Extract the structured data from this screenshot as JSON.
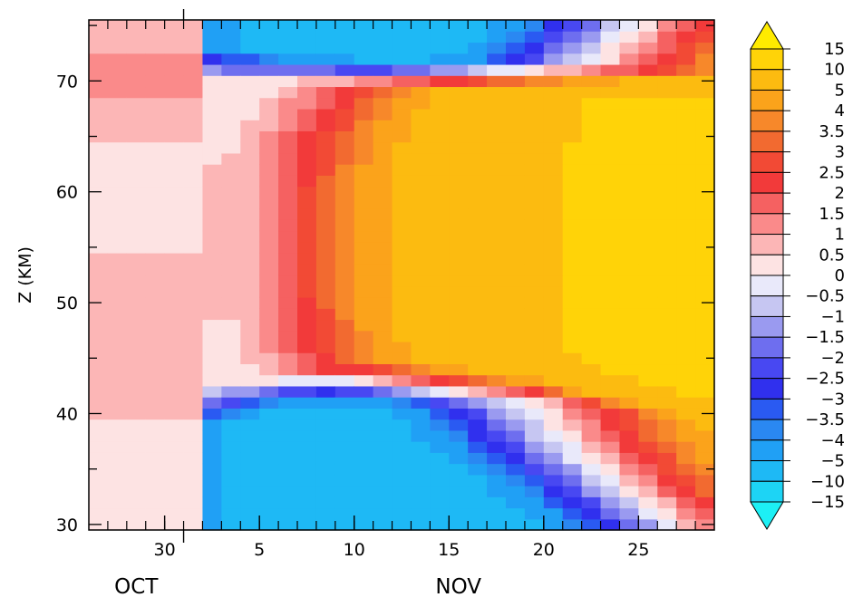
{
  "chart_data": {
    "type": "heatmap",
    "title": "",
    "xlabel": "",
    "ylabel": "Z (KM)",
    "x_start_day": 26,
    "x_end_day": 59,
    "day_axis_note_oct": "OCT",
    "month_labels": [
      {
        "label": "OCT",
        "day": 28.5
      },
      {
        "label": "NOV",
        "day": 45.5
      }
    ],
    "x_tick_labels": [
      {
        "label": "30",
        "day": 30
      },
      {
        "label": "5",
        "day": 35
      },
      {
        "label": "10",
        "day": 40
      },
      {
        "label": "15",
        "day": 45
      },
      {
        "label": "20",
        "day": 50
      },
      {
        "label": "25",
        "day": 55
      }
    ],
    "ylim": [
      29.5,
      75.5
    ],
    "y_ticks": [
      30,
      40,
      50,
      60,
      70
    ],
    "colorbar": {
      "labels": [
        "15",
        "10",
        "5",
        "4",
        "3.5",
        "3",
        "2.5",
        "2",
        "1.5",
        "1",
        "0.5",
        "0",
        "−0.5",
        "−1",
        "−1.5",
        "−2",
        "−2.5",
        "−3",
        "−3.5",
        "−4",
        "−5",
        "−10",
        "−15"
      ],
      "colors": [
        "#ffeb00",
        "#ffd308",
        "#fcbb10",
        "#fba31b",
        "#f7882a",
        "#f26a30",
        "#f24a35",
        "#f23a3a",
        "#f56161",
        "#fa8a8a",
        "#fcb6b6",
        "#fde3e3",
        "#e9e9fa",
        "#c6c6f2",
        "#9a9af0",
        "#6e6eef",
        "#4848f2",
        "#3030ee",
        "#2a5af2",
        "#2a88f2",
        "#20a0f5",
        "#1eb9f5",
        "#1dd4f5",
        "#1df0f5"
      ]
    },
    "series": [],
    "field_note": "temperature anomaly-like field; values in colorbar units"
  }
}
